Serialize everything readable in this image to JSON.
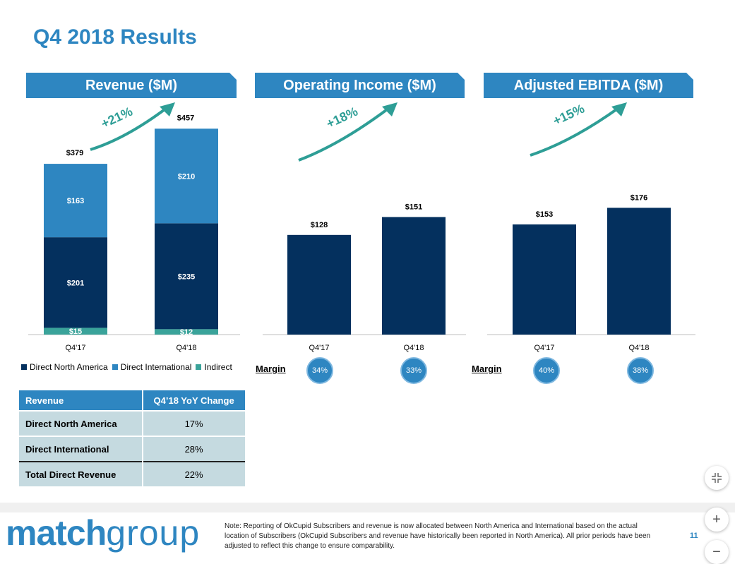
{
  "title": "Q4 2018 Results",
  "colors": {
    "accent": "#2E86C1",
    "direct_north_america": "#04305E",
    "direct_international": "#2E86C1",
    "indirect": "#3AA39A",
    "growth_arrow": "#2E9E96",
    "table_row": "#C5DAE0"
  },
  "chart_data": [
    {
      "type": "bar",
      "stacked": true,
      "title": "Revenue ($M)",
      "categories": [
        "Q4'17",
        "Q4'18"
      ],
      "series": [
        {
          "name": "Indirect",
          "values": [
            15,
            12
          ],
          "labels": [
            "$15",
            "$12"
          ]
        },
        {
          "name": "Direct North America",
          "values": [
            201,
            235
          ],
          "labels": [
            "$201",
            "$235"
          ]
        },
        {
          "name": "Direct International",
          "values": [
            163,
            210
          ],
          "labels": [
            "$163",
            "$210"
          ]
        }
      ],
      "totals": [
        379,
        457
      ],
      "total_labels": [
        "$379",
        "$457"
      ],
      "growth_label": "+21%",
      "ylim": [
        0,
        470
      ]
    },
    {
      "type": "bar",
      "title": "Operating Income ($M)",
      "categories": [
        "Q4'17",
        "Q4'18"
      ],
      "values": [
        128,
        151
      ],
      "value_labels": [
        "$128",
        "$151"
      ],
      "growth_label": "+18%",
      "ylim": [
        0,
        272
      ]
    },
    {
      "type": "bar",
      "title": "Adjusted EBITDA ($M)",
      "categories": [
        "Q4'17",
        "Q4'18"
      ],
      "values": [
        153,
        176
      ],
      "value_labels": [
        "$153",
        "$176"
      ],
      "growth_label": "+15%",
      "ylim": [
        0,
        294
      ]
    }
  ],
  "legend": {
    "items": [
      {
        "label": "Direct North America"
      },
      {
        "label": "Direct International"
      },
      {
        "label": "Indirect"
      }
    ]
  },
  "margins": {
    "label": "Margin",
    "operating_income": [
      "34%",
      "33%"
    ],
    "adjusted_ebitda": [
      "40%",
      "38%"
    ]
  },
  "yoy_table": {
    "headers": [
      "Revenue",
      "Q4’18 YoY Change"
    ],
    "rows": [
      {
        "name": "Direct North America",
        "value": "17%"
      },
      {
        "name": "Direct International",
        "value": "28%"
      },
      {
        "name": "Total Direct Revenue",
        "value": "22%"
      }
    ]
  },
  "footer": {
    "logo_bold": "match",
    "logo_light": "group",
    "note": "Note: Reporting of OkCupid Subscribers and revenue is now allocated between North America and International based on the actual location of Subscribers (OkCupid Subscribers and revenue have historically been reported in North America).  All prior periods have been adjusted to reflect this change to ensure comparability.",
    "page_number": "11"
  },
  "controls": {
    "fit_icon": "fit-screen-icon",
    "zoom_in_label": "+",
    "zoom_out_label": "−"
  }
}
